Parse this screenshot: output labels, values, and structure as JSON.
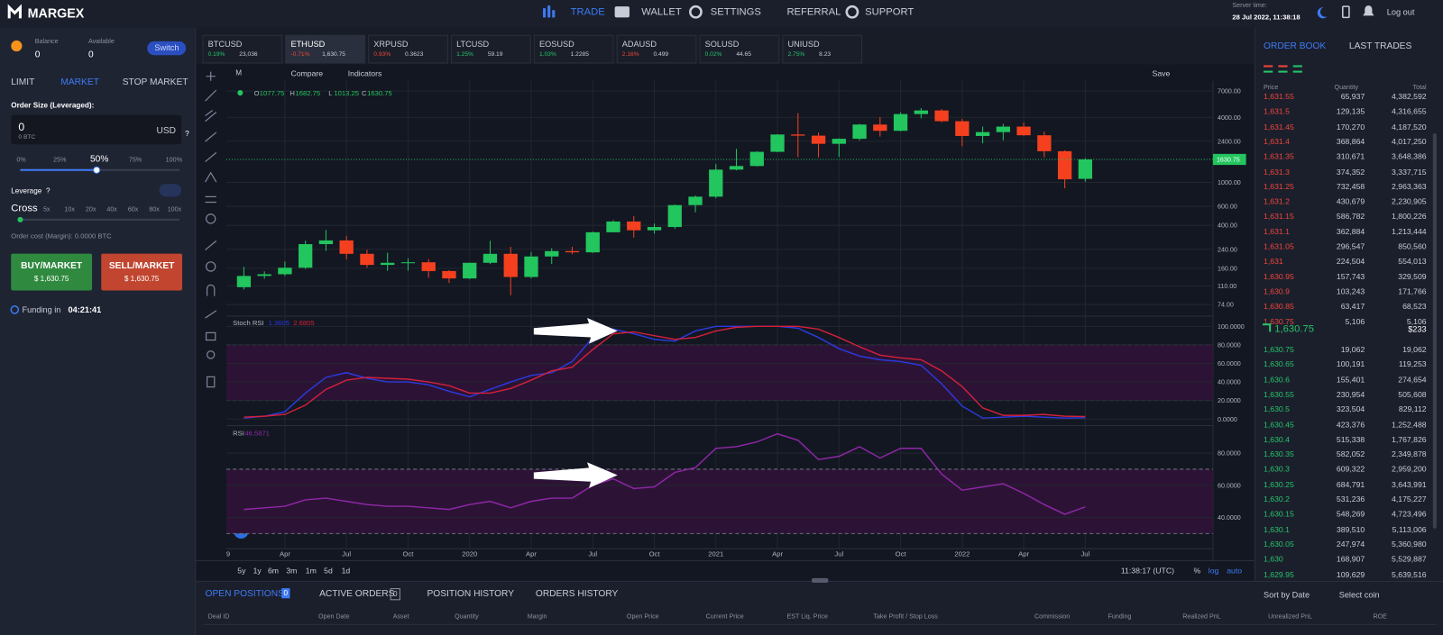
{
  "header": {
    "logo": "MARGEX",
    "nav": [
      "TRADE",
      "WALLET",
      "SETTINGS",
      "REFERRAL",
      "SUPPORT"
    ],
    "server_time_label": "Server time:",
    "server_time": "28 Jul 2022, 11:38:18",
    "logout": "Log out"
  },
  "sidebar": {
    "balance_label": "Balance",
    "balance": "0",
    "available_label": "Available",
    "available": "0",
    "switch": "Switch",
    "order_tabs": [
      "LIMIT",
      "MARKET",
      "STOP MARKET"
    ],
    "order_size_label": "Order Size (Leveraged):",
    "order_size": "0",
    "order_size_btc": "0 BTC",
    "currency": "USD",
    "help": "?",
    "percents": [
      "0%",
      "25%",
      "50%",
      "75%",
      "100%"
    ],
    "leverage_label": "Leverage",
    "cross": "Cross",
    "leverages": [
      "5x",
      "10x",
      "20x",
      "40x",
      "60x",
      "80x",
      "100x"
    ],
    "order_cost": "Order cost (Margin): 0.0000 BTC",
    "buy": "BUY/MARKET",
    "buy_price": "$ 1,630.75",
    "sell": "SELL/MARKET",
    "sell_price": "$ 1,630.75",
    "funding_label": "Funding in",
    "funding_time": "04:21:41"
  },
  "tickers": [
    {
      "symbol": "BTCUSD",
      "change": "0.19%",
      "price": "23,036",
      "color": "#26c46a"
    },
    {
      "symbol": "ETHUSD",
      "change": "-0.71%",
      "price": "1,630.75",
      "color": "#f0463a",
      "active": true
    },
    {
      "symbol": "XRPUSD",
      "change": "0.93%",
      "price": "0.3623",
      "color": "#f0463a"
    },
    {
      "symbol": "LTCUSD",
      "change": "1.25%",
      "price": "59.19",
      "color": "#26c46a"
    },
    {
      "symbol": "EOSUSD",
      "change": "1.03%",
      "price": "1.2285",
      "color": "#26c46a"
    },
    {
      "symbol": "ADAUSD",
      "change": "2.16%",
      "price": "0.499",
      "color": "#f0463a"
    },
    {
      "symbol": "SOLUSD",
      "change": "0.02%",
      "price": "44.65",
      "color": "#26c46a"
    },
    {
      "symbol": "UNIUSD",
      "change": "2.75%",
      "price": "8.23",
      "color": "#26c46a"
    }
  ],
  "toolbar": {
    "interval": "M",
    "compare": "Compare",
    "indicators": "Indicators",
    "save": "Save"
  },
  "chart_footer": {
    "ranges": [
      "5y",
      "1y",
      "6m",
      "3m",
      "1m",
      "5d",
      "1d"
    ],
    "time": "11:38:17 (UTC)",
    "percent": "%",
    "log": "log",
    "auto": "auto"
  },
  "chart_data": [
    {
      "type": "candlestick",
      "first_label": "9",
      "ohlc_prefixes": [
        "O",
        "H",
        "L",
        "C"
      ],
      "categories": [
        null,
        null,
        "Apr",
        null,
        null,
        "Jul",
        null,
        null,
        "Oct",
        null,
        null,
        "2020",
        null,
        null,
        "Apr",
        null,
        null,
        "Jul",
        null,
        null,
        "Oct",
        null,
        null,
        "2021",
        null,
        null,
        "Apr",
        null,
        null,
        "Jul",
        null,
        null,
        "Oct",
        null,
        null,
        "2022",
        null,
        null,
        "Apr",
        null,
        null,
        "Jul"
      ],
      "open": [
        107,
        136,
        141,
        162,
        268,
        290,
        218,
        172,
        180,
        182,
        151,
        129,
        180,
        218,
        133,
        206,
        231,
        225,
        345,
        434,
        360,
        386,
        616,
        737,
        1312,
        1417,
        1918,
        2774,
        2707,
        2275,
        2531,
        3430,
        3001,
        4288,
        4631,
        3683,
        2688,
        2919,
        3282,
        2729,
        1942,
        1077.75
      ],
      "high": [
        165,
        150,
        185,
        288,
        362,
        318,
        238,
        223,
        198,
        195,
        154,
        180,
        288,
        253,
        227,
        246,
        253,
        350,
        446,
        488,
        416,
        622,
        754,
        1476,
        2040,
        1943,
        2797,
        4372,
        2892,
        2552,
        3478,
        4028,
        4460,
        4868,
        4778,
        3875,
        3281,
        3480,
        3582,
        2955,
        1978,
        1682.75
      ],
      "low": [
        102,
        128,
        136,
        158,
        232,
        193,
        162,
        152,
        152,
        131,
        117,
        127,
        175,
        90,
        129,
        176,
        216,
        222,
        345,
        308,
        335,
        372,
        528,
        713,
        1290,
        1400,
        1900,
        1720,
        1707,
        1718,
        2440,
        2652,
        2971,
        3912,
        3600,
        2159,
        2300,
        2448,
        2700,
        1707,
        881,
        1013.25
      ],
      "close": [
        136,
        141,
        162,
        268,
        290,
        218,
        172,
        180,
        182,
        151,
        129,
        180,
        218,
        133,
        206,
        231,
        225,
        345,
        434,
        360,
        386,
        616,
        737,
        1312,
        1417,
        1918,
        2774,
        2707,
        2275,
        2531,
        3430,
        3001,
        4288,
        4631,
        3683,
        2688,
        2919,
        3282,
        2729,
        1942,
        1067,
        1630.75
      ],
      "up_color": "#22c55e",
      "down_color": "#f4401f",
      "log": true,
      "grid": true,
      "ylim": [
        60,
        8700
      ],
      "yticks": [
        {
          "value": 7000,
          "label": "7000.00"
        },
        {
          "value": 4000,
          "label": "4000.00"
        },
        {
          "value": 2400,
          "label": "2400.00"
        },
        {
          "value": 1000,
          "label": "1000.00"
        },
        {
          "value": 600,
          "label": "600.00"
        },
        {
          "value": 400,
          "label": "400.00"
        },
        {
          "value": 240,
          "label": "240.00"
        },
        {
          "value": 160,
          "label": "160.00"
        },
        {
          "value": 110,
          "label": "110.00"
        },
        {
          "value": 74,
          "label": "74.00"
        }
      ]
    },
    {
      "type": "line",
      "title": "Stoch RSI",
      "ylim": [
        -6,
        110
      ],
      "band": [
        20,
        80
      ],
      "band_color": "#2c1336",
      "yticks": [
        {
          "value": 100,
          "label": "100.0000"
        },
        {
          "value": 80,
          "label": "80.0000"
        },
        {
          "value": 60,
          "label": "60.0000"
        },
        {
          "value": 40,
          "label": "40.0000"
        },
        {
          "value": 20,
          "label": "20.0000"
        },
        {
          "value": 0,
          "label": "0.0000"
        }
      ],
      "series": [
        {
          "color": "#2b3be0",
          "values": [
            1,
            3,
            8,
            28,
            45,
            50,
            44,
            40,
            40,
            37,
            30,
            24,
            32,
            40,
            47,
            50,
            62,
            88,
            97,
            92,
            86,
            84,
            95,
            100,
            100,
            100,
            100,
            98,
            88,
            76,
            68,
            64,
            62,
            58,
            38,
            14,
            1,
            2,
            3,
            2,
            1,
            1.3605
          ]
        },
        {
          "color": "#d3203a",
          "values": [
            2,
            3,
            5,
            15,
            32,
            42,
            45,
            44,
            43,
            40,
            36,
            28,
            28,
            33,
            42,
            52,
            56,
            75,
            92,
            94,
            90,
            86,
            88,
            95,
            99,
            100,
            100,
            100,
            97,
            88,
            78,
            69,
            66,
            64,
            52,
            35,
            12,
            4,
            4,
            5,
            3,
            2.6805
          ]
        }
      ]
    },
    {
      "type": "line",
      "title": "RSI",
      "ylim": [
        20.6,
        96
      ],
      "band": [
        30,
        70
      ],
      "band_color": "#2c1336",
      "yticks": [
        {
          "value": 80,
          "label": "80.0000"
        },
        {
          "value": 60,
          "label": "60.0000"
        },
        {
          "value": 40,
          "label": "40.0000"
        }
      ],
      "series": [
        {
          "color": "#9027a8",
          "values": [
            45,
            46,
            47,
            51,
            52,
            50,
            48,
            47,
            47,
            46,
            45,
            48,
            50,
            46,
            50,
            52,
            52,
            60,
            64,
            58,
            59,
            68,
            71,
            83,
            84,
            87,
            92,
            88,
            76,
            78,
            84,
            77,
            83,
            83,
            67,
            57,
            59,
            61,
            55,
            48,
            42,
            46.5871
          ]
        }
      ]
    }
  ],
  "order_book": {
    "tabs": [
      "ORDER BOOK",
      "LAST TRADES"
    ],
    "columns": [
      "Price",
      "Quantity",
      "Total"
    ],
    "asks": [
      [
        "1,631.55",
        "65,937",
        "4,382,592"
      ],
      [
        "1,631.5",
        "129,135",
        "4,316,655"
      ],
      [
        "1,631.45",
        "170,270",
        "4,187,520"
      ],
      [
        "1,631.4",
        "368,864",
        "4,017,250"
      ],
      [
        "1,631.35",
        "310,671",
        "3,648,386"
      ],
      [
        "1,631.3",
        "374,352",
        "3,337,715"
      ],
      [
        "1,631.25",
        "732,458",
        "2,963,363"
      ],
      [
        "1,631.2",
        "430,679",
        "2,230,905"
      ],
      [
        "1,631.15",
        "586,782",
        "1,800,226"
      ],
      [
        "1,631.1",
        "362,884",
        "1,213,444"
      ],
      [
        "1,631.05",
        "296,547",
        "850,560"
      ],
      [
        "1,631",
        "224,504",
        "554,013"
      ],
      [
        "1,630.95",
        "157,743",
        "329,509"
      ],
      [
        "1,630.9",
        "103,243",
        "171,766"
      ],
      [
        "1,630.85",
        "63,417",
        "68,523"
      ],
      [
        "1,630.75",
        "5,106",
        "5,106"
      ]
    ],
    "last_price": "1,630.75",
    "last_size": "$233",
    "bids": [
      [
        "1,630.75",
        "19,062",
        "19,062"
      ],
      [
        "1,630.65",
        "100,191",
        "119,253"
      ],
      [
        "1,630.6",
        "155,401",
        "274,654"
      ],
      [
        "1,630.55",
        "230,954",
        "505,608"
      ],
      [
        "1,630.5",
        "323,504",
        "829,112"
      ],
      [
        "1,630.45",
        "423,376",
        "1,252,488"
      ],
      [
        "1,630.4",
        "515,338",
        "1,767,826"
      ],
      [
        "1,630.35",
        "582,052",
        "2,349,878"
      ],
      [
        "1,630.3",
        "609,322",
        "2,959,200"
      ],
      [
        "1,630.25",
        "684,791",
        "3,643,991"
      ],
      [
        "1,630.2",
        "531,236",
        "4,175,227"
      ],
      [
        "1,630.15",
        "548,269",
        "4,723,496"
      ],
      [
        "1,630.1",
        "389,510",
        "5,113,006"
      ],
      [
        "1,630.05",
        "247,974",
        "5,360,980"
      ],
      [
        "1,630",
        "168,907",
        "5,529,887"
      ],
      [
        "1,629.95",
        "109,629",
        "5,639,516"
      ]
    ]
  },
  "positions": {
    "tabs": [
      {
        "label": "OPEN POSITIONS",
        "count": "0"
      },
      {
        "label": "ACTIVE ORDERS",
        "count": "0"
      },
      {
        "label": "POSITION HISTORY"
      },
      {
        "label": "ORDERS HISTORY"
      }
    ],
    "sort": "Sort by Date",
    "select": "Select coin",
    "columns": [
      "Deal ID",
      "Open Date",
      "Asset",
      "Quantity",
      "Margin",
      "Open Price",
      "Current Price",
      "EST Liq. Price",
      "Take Profit / Stop Loss",
      "Commission",
      "Funding",
      "Realized PnL",
      "Unrealized PnL",
      "ROE"
    ]
  }
}
